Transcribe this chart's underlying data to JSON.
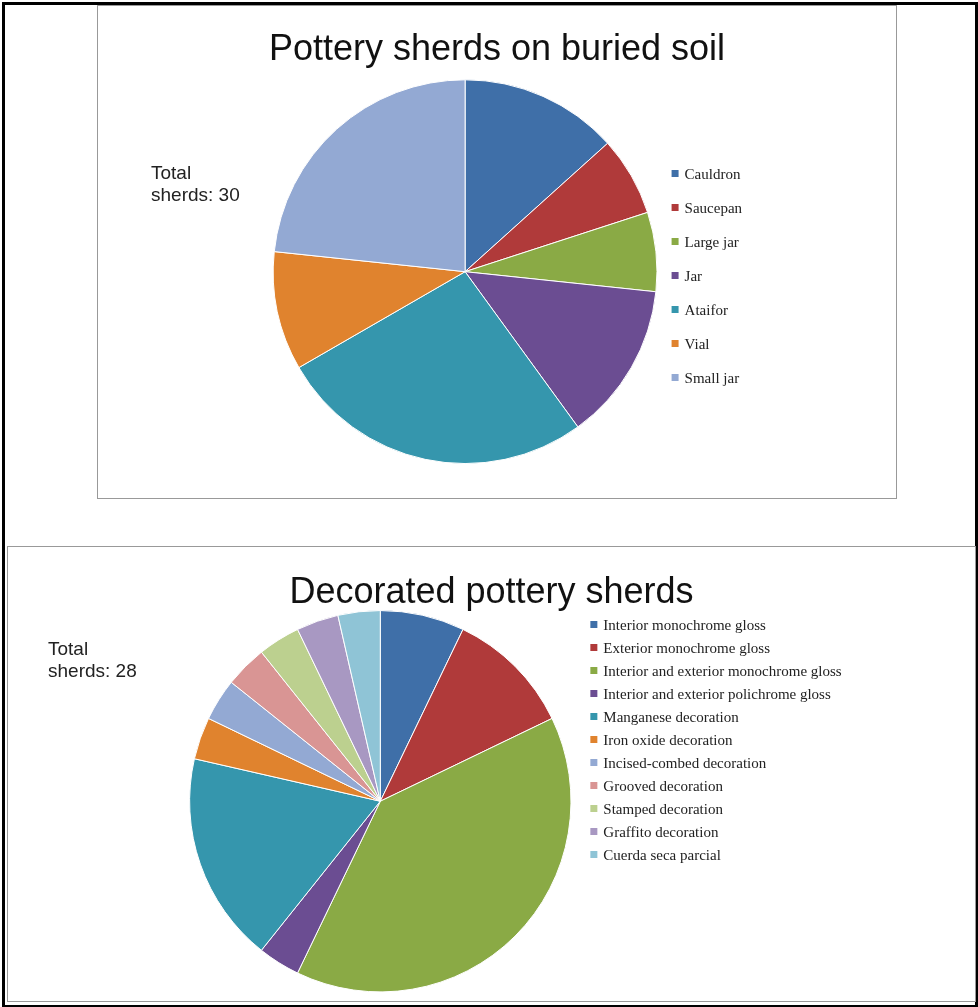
{
  "chart_data": [
    {
      "type": "pie",
      "title": "Pottery sherds on buried soil",
      "categories": [
        "Cauldron",
        "Saucepan",
        "Large jar",
        "Jar",
        "Ataifor",
        "Vial",
        "Small jar"
      ],
      "values": [
        13.33,
        6.67,
        6.67,
        13.33,
        26.67,
        10,
        23.33
      ],
      "colors": [
        "#3f6fa8",
        "#b03a3a",
        "#8aaa45",
        "#6b4d92",
        "#3596ad",
        "#e0832e",
        "#93a9d3"
      ],
      "legend": "right",
      "annotations": [
        "Total\nsherds: 30"
      ]
    },
    {
      "type": "pie",
      "title": "Decorated pottery sherds",
      "categories": [
        "Interior monochrome gloss",
        "Exterior monochrome gloss",
        "Interior and exterior monochrome gloss",
        "Interior and exterior polichrome gloss",
        "Manganese decoration",
        "Iron oxide decoration",
        "Incised-combed decoration",
        "Grooved decoration",
        "Stamped decoration",
        "Graffito decoration",
        "Cuerda seca parcial"
      ],
      "values": [
        7.14,
        10.71,
        39.29,
        3.57,
        17.86,
        3.57,
        3.57,
        3.57,
        3.57,
        3.57,
        3.57
      ],
      "colors": [
        "#3f6fa8",
        "#b03a3a",
        "#8aaa45",
        "#6b4d92",
        "#3596ad",
        "#e0832e",
        "#93a9d3",
        "#d99594",
        "#bcd08f",
        "#a898c2",
        "#8fc4d6"
      ],
      "legend": "right",
      "annotations": [
        "Total\nsherds: 28"
      ]
    }
  ]
}
